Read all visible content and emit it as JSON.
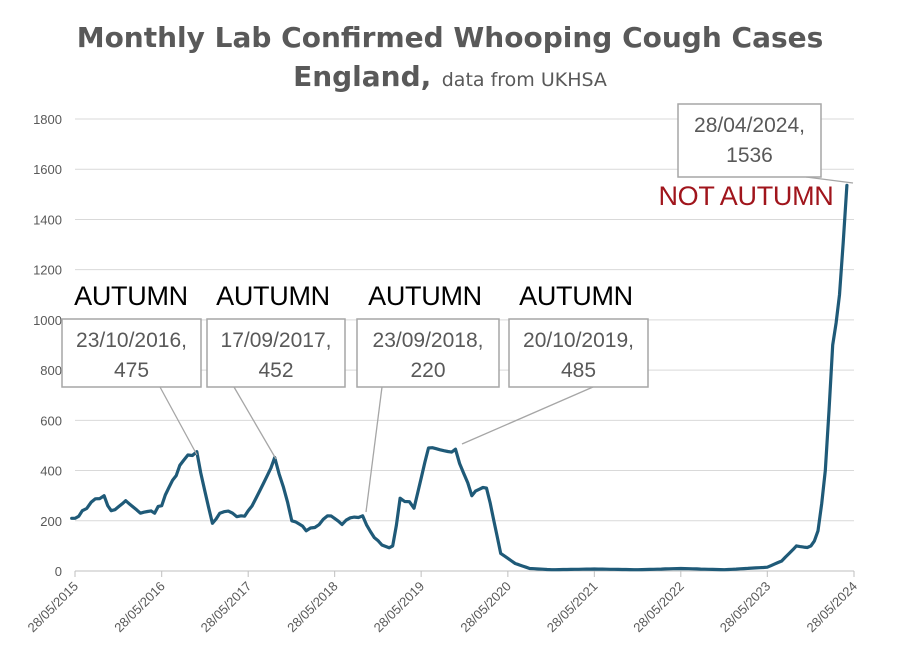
{
  "chart_data": {
    "type": "line",
    "title": "Monthly Lab Confirmed Whooping Cough Cases",
    "title_line2": "England,",
    "subtitle": "data from UKHSA",
    "xlabel": "",
    "ylabel": "",
    "ylim": [
      0,
      1800
    ],
    "yticks": [
      0,
      200,
      400,
      600,
      800,
      1000,
      1200,
      1400,
      1600,
      1800
    ],
    "xlim": [
      "28/05/2015",
      "28/05/2024"
    ],
    "xticks": [
      "28/05/2015",
      "28/05/2016",
      "28/05/2017",
      "28/05/2018",
      "28/05/2019",
      "28/05/2020",
      "28/05/2021",
      "28/05/2022",
      "28/05/2023",
      "28/05/2024"
    ],
    "grid": "horizontal",
    "line_color": "#1f5a78",
    "series": [
      {
        "x": [
          "14/05/2015",
          "28/06/2015",
          "28/09/2015",
          "28/10/2015",
          "28/12/2015",
          "28/02/2016",
          "28/04/2016",
          "28/05/2016",
          "28/07/2016",
          "28/08/2016",
          "23/10/2016",
          "28/12/2016",
          "28/01/2017",
          "28/04/2017",
          "28/05/2017",
          "17/09/2017",
          "28/11/2017",
          "28/01/2018",
          "28/04/2018",
          "28/06/2018",
          "23/09/2018",
          "28/11/2018",
          "28/01/2019",
          "28/02/2019",
          "28/04/2019",
          "28/06/2019",
          "20/10/2019",
          "28/12/2019",
          "28/02/2020",
          "28/04/2020",
          "28/06/2020",
          "28/08/2020",
          "28/11/2020",
          "28/05/2021",
          "28/11/2021",
          "28/05/2022",
          "28/11/2022",
          "28/05/2023",
          "28/07/2023",
          "28/09/2023",
          "28/11/2023",
          "28/12/2023",
          "28/01/2024",
          "28/02/2024",
          "28/03/2024",
          "28/04/2024"
        ],
        "values": [
          210,
          240,
          300,
          240,
          280,
          230,
          230,
          260,
          380,
          440,
          475,
          190,
          230,
          220,
          240,
          452,
          200,
          160,
          220,
          185,
          220,
          120,
          100,
          290,
          250,
          490,
          485,
          300,
          330,
          70,
          30,
          10,
          5,
          8,
          5,
          10,
          5,
          15,
          40,
          100,
          100,
          160,
          400,
          900,
          1100,
          1536
        ]
      }
    ],
    "annotations": [
      {
        "season": "AUTUMN",
        "date": "23/10/2016,",
        "value": "475",
        "season_color": "#000000"
      },
      {
        "season": "AUTUMN",
        "date": "17/09/2017,",
        "value": "452",
        "season_color": "#000000"
      },
      {
        "season": "AUTUMN",
        "date": "23/09/2018,",
        "value": "220",
        "season_color": "#000000"
      },
      {
        "season": "AUTUMN",
        "date": "20/10/2019,",
        "value": "485",
        "season_color": "#000000"
      },
      {
        "season": "NOT AUTUMN",
        "date": "28/04/2024,",
        "value": "1536",
        "season_color": "#a0151c"
      }
    ]
  }
}
